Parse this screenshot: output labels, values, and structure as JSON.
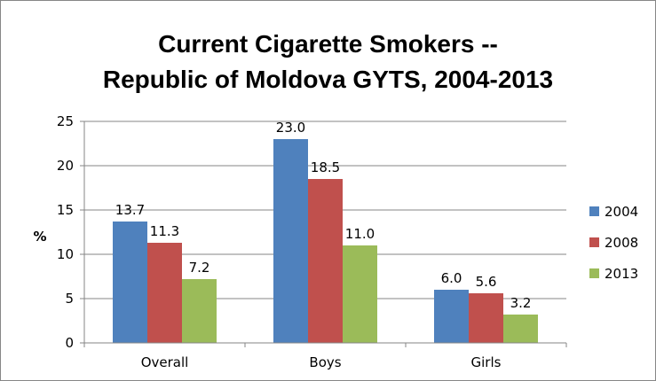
{
  "chart_data": {
    "type": "bar",
    "title_lines": [
      "Current Cigarette Smokers --",
      "Republic of Moldova GYTS, 2004-2013"
    ],
    "xlabel": "",
    "ylabel": "%",
    "categories": [
      "Overall",
      "Boys",
      "Girls"
    ],
    "series": [
      {
        "name": "2004",
        "color": "#4f81bd",
        "values": [
          13.7,
          23.0,
          6.0
        ]
      },
      {
        "name": "2008",
        "color": "#c0504d",
        "values": [
          11.3,
          18.5,
          5.6
        ]
      },
      {
        "name": "2013",
        "color": "#9bbb59",
        "values": [
          7.2,
          11.0,
          3.2
        ]
      }
    ],
    "data_labels": [
      [
        "13.7",
        "23.0",
        "6.0"
      ],
      [
        "11.3",
        "18.5",
        "5.6"
      ],
      [
        "7.2",
        "11.0",
        "3.2"
      ]
    ],
    "yticks": [
      "0",
      "5",
      "10",
      "15",
      "20",
      "25"
    ],
    "ylim": [
      0,
      25
    ],
    "grid": true,
    "legend": "right"
  }
}
